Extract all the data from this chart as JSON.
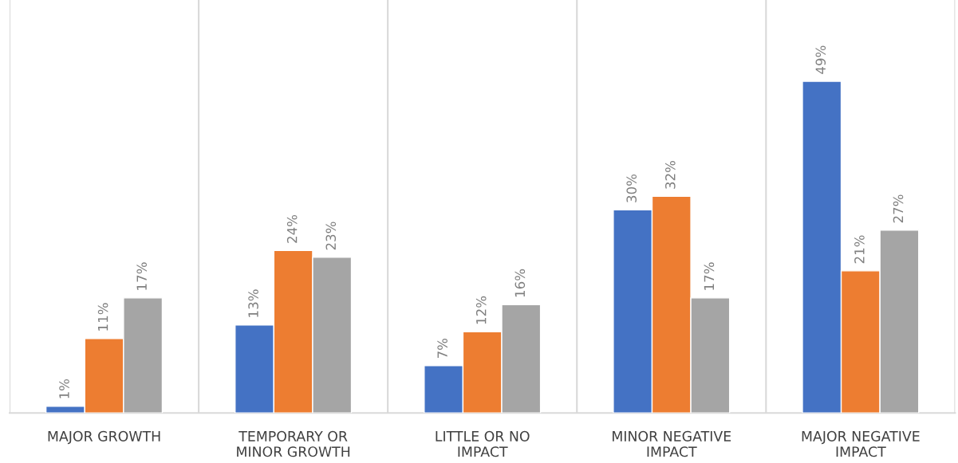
{
  "chart_data": {
    "type": "bar",
    "categories": [
      "MAJOR GROWTH",
      "TEMPORARY OR\nMINOR GROWTH",
      "LITTLE OR NO\nIMPACT",
      "MINOR NEGATIVE\nIMPACT",
      "MAJOR NEGATIVE\nIMPACT"
    ],
    "series": [
      {
        "color": "#4472c4",
        "values": [
          1,
          13,
          7,
          30,
          49
        ],
        "value_labels": [
          "1%",
          "13%",
          "7%",
          "30%",
          "49%"
        ]
      },
      {
        "color": "#ed7d31",
        "values": [
          11,
          24,
          12,
          32,
          21
        ],
        "value_labels": [
          "11%",
          "24%",
          "12%",
          "32%",
          "21%"
        ]
      },
      {
        "color": "#a5a5a5",
        "values": [
          17,
          23,
          16,
          17,
          27
        ],
        "value_labels": [
          "17%",
          "23%",
          "16%",
          "17%",
          "27%"
        ]
      }
    ],
    "ylim": [
      0,
      61
    ],
    "grid": "x",
    "tick_labels": "x",
    "legend": false
  }
}
